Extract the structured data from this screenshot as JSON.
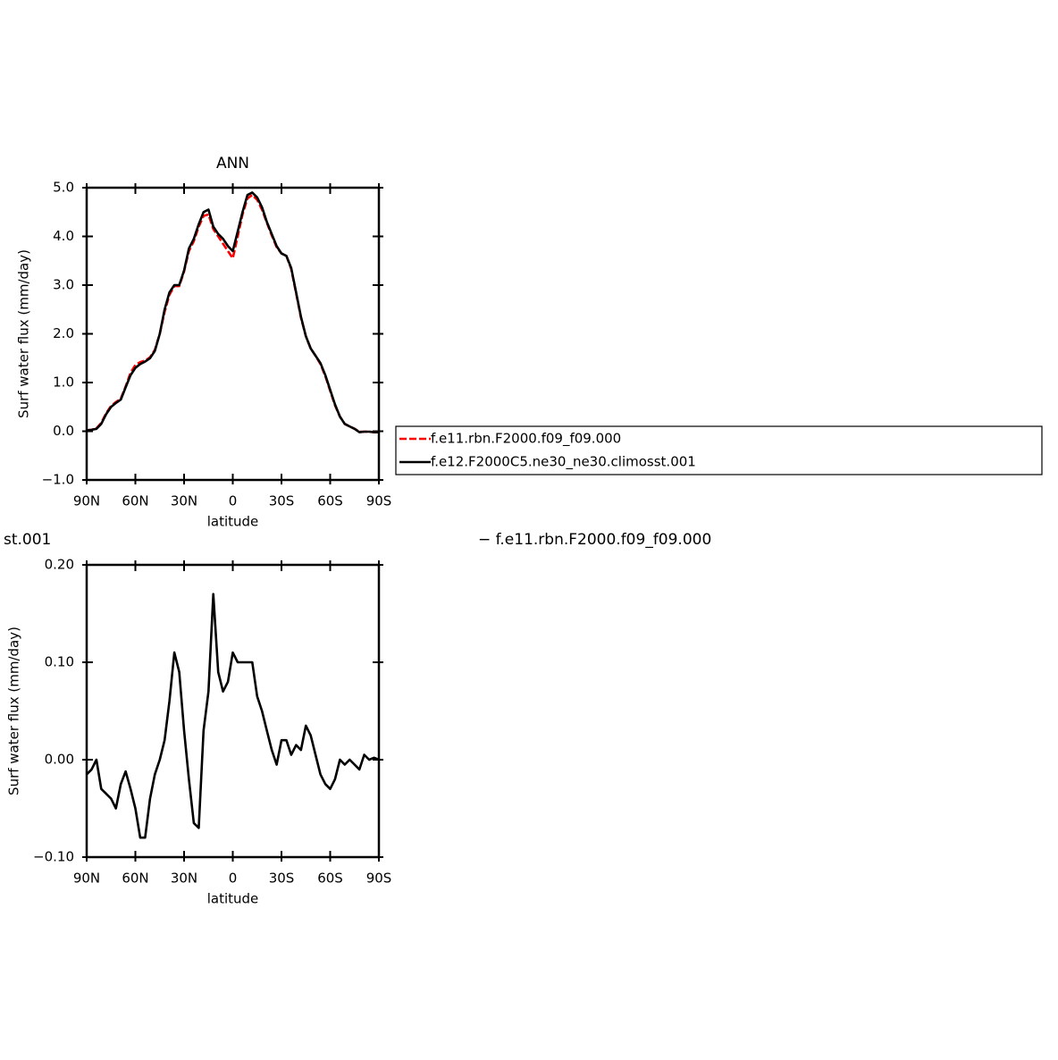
{
  "chart_data": [
    {
      "type": "line",
      "title": "ANN",
      "xlabel": "latitude",
      "ylabel": "Surf water flux (mm/day)",
      "xlim": [
        90,
        -90
      ],
      "ylim": [
        -1.0,
        5.0
      ],
      "xticks": [
        {
          "value": 90,
          "label": "90N"
        },
        {
          "value": 60,
          "label": "60N"
        },
        {
          "value": 30,
          "label": "30N"
        },
        0,
        {
          "value": -30,
          "label": "30S"
        },
        {
          "value": -60,
          "label": "60S"
        },
        {
          "value": -90,
          "label": "90S"
        }
      ],
      "yticks": [
        {
          "value": 5.0,
          "label": "5.0"
        },
        {
          "value": 4.0,
          "label": "4.0"
        },
        {
          "value": 3.0,
          "label": "3.0"
        },
        {
          "value": 2.0,
          "label": "2.0"
        },
        {
          "value": 1.0,
          "label": "1.0"
        },
        {
          "value": 0.0,
          "label": "0.0"
        },
        {
          "value": -1.0,
          "label": "−1.0"
        }
      ],
      "x": [
        90,
        87,
        84,
        81,
        78,
        75,
        72,
        69,
        66,
        63,
        60,
        57,
        54,
        51,
        48,
        45,
        42,
        39,
        36,
        33,
        30,
        27,
        24,
        21,
        18,
        15,
        12,
        9,
        6,
        3,
        0,
        -3,
        -6,
        -9,
        -12,
        -15,
        -18,
        -21,
        -24,
        -27,
        -30,
        -33,
        -36,
        -39,
        -42,
        -45,
        -48,
        -51,
        -54,
        -57,
        -60,
        -63,
        -66,
        -69,
        -72,
        -75,
        -78,
        -81,
        -84,
        -87,
        -90
      ],
      "legend": "right",
      "series": [
        {
          "name": "f.e11.rbn.F2000.f09_f09.000",
          "color": "#ff0000",
          "dashed": true,
          "values": [
            0.02,
            0.03,
            0.06,
            0.17,
            0.37,
            0.52,
            0.6,
            0.67,
            0.92,
            1.2,
            1.36,
            1.42,
            1.45,
            1.52,
            1.67,
            2.0,
            2.45,
            2.8,
            2.98,
            2.98,
            3.28,
            3.7,
            3.9,
            4.2,
            4.42,
            4.45,
            4.15,
            4.0,
            3.85,
            3.7,
            3.55,
            4.0,
            4.45,
            4.78,
            4.85,
            4.75,
            4.55,
            4.28,
            4.02,
            3.78,
            3.65,
            3.6,
            3.33,
            2.83,
            2.33,
            1.95,
            1.7,
            1.55,
            1.38,
            1.13,
            0.83,
            0.53,
            0.3,
            0.15,
            0.1,
            0.05,
            -0.01,
            -0.01,
            -0.01,
            -0.02,
            -0.02
          ]
        },
        {
          "name": "f.e12.F2000C5.ne30_ne30.climosst.001",
          "color": "#000000",
          "dashed": false,
          "values": [
            0.02,
            0.03,
            0.05,
            0.15,
            0.35,
            0.5,
            0.58,
            0.65,
            0.9,
            1.15,
            1.3,
            1.38,
            1.43,
            1.5,
            1.65,
            2.0,
            2.5,
            2.85,
            3.0,
            3.0,
            3.3,
            3.75,
            3.95,
            4.25,
            4.5,
            4.55,
            4.2,
            4.05,
            3.95,
            3.8,
            3.7,
            4.1,
            4.5,
            4.85,
            4.9,
            4.8,
            4.6,
            4.3,
            4.05,
            3.8,
            3.65,
            3.6,
            3.35,
            2.85,
            2.35,
            1.95,
            1.7,
            1.55,
            1.4,
            1.15,
            0.85,
            0.55,
            0.3,
            0.15,
            0.1,
            0.05,
            -0.02,
            -0.01,
            -0.01,
            -0.02,
            -0.02
          ]
        }
      ]
    },
    {
      "type": "line",
      "title_left": "st.001",
      "title_right": "− f.e11.rbn.F2000.f09_f09.000",
      "xlabel": "latitude",
      "ylabel": "Surf water flux (mm/day)",
      "xlim": [
        90,
        -90
      ],
      "ylim": [
        -0.1,
        0.2
      ],
      "xticks": [
        {
          "value": 90,
          "label": "90N"
        },
        {
          "value": 60,
          "label": "60N"
        },
        {
          "value": 30,
          "label": "30N"
        },
        0,
        {
          "value": -30,
          "label": "30S"
        },
        {
          "value": -60,
          "label": "60S"
        },
        {
          "value": -90,
          "label": "90S"
        }
      ],
      "yticks": [
        {
          "value": 0.2,
          "label": "0.20"
        },
        {
          "value": 0.1,
          "label": "0.10"
        },
        {
          "value": 0.0,
          "label": "0.00"
        },
        {
          "value": -0.1,
          "label": "−0.10"
        }
      ],
      "x": [
        90,
        87,
        84,
        81,
        78,
        75,
        72,
        69,
        66,
        63,
        60,
        57,
        54,
        51,
        48,
        45,
        42,
        39,
        36,
        33,
        30,
        27,
        24,
        21,
        18,
        15,
        12,
        9,
        6,
        3,
        0,
        -3,
        -6,
        -9,
        -12,
        -15,
        -18,
        -21,
        -24,
        -27,
        -30,
        -33,
        -36,
        -39,
        -42,
        -45,
        -48,
        -51,
        -54,
        -57,
        -60,
        -63,
        -66,
        -69,
        -72,
        -75,
        -78,
        -81,
        -84,
        -87,
        -90
      ],
      "series": [
        {
          "color": "#000000",
          "dashed": false,
          "values": [
            -0.015,
            -0.01,
            0.0,
            -0.03,
            -0.035,
            -0.04,
            -0.05,
            -0.025,
            -0.012,
            -0.03,
            -0.05,
            -0.08,
            -0.08,
            -0.04,
            -0.015,
            0.0,
            0.02,
            0.06,
            0.11,
            0.09,
            0.03,
            -0.02,
            -0.065,
            -0.07,
            0.03,
            0.07,
            0.17,
            0.09,
            0.07,
            0.08,
            0.11,
            0.1,
            0.1,
            0.1,
            0.1,
            0.065,
            0.05,
            0.03,
            0.01,
            -0.005,
            0.02,
            0.02,
            0.005,
            0.015,
            0.01,
            0.035,
            0.025,
            0.005,
            -0.015,
            -0.025,
            -0.03,
            -0.02,
            0.0,
            -0.005,
            0.0,
            -0.005,
            -0.01,
            0.005,
            0.0,
            0.002,
            0.0
          ]
        }
      ]
    }
  ]
}
